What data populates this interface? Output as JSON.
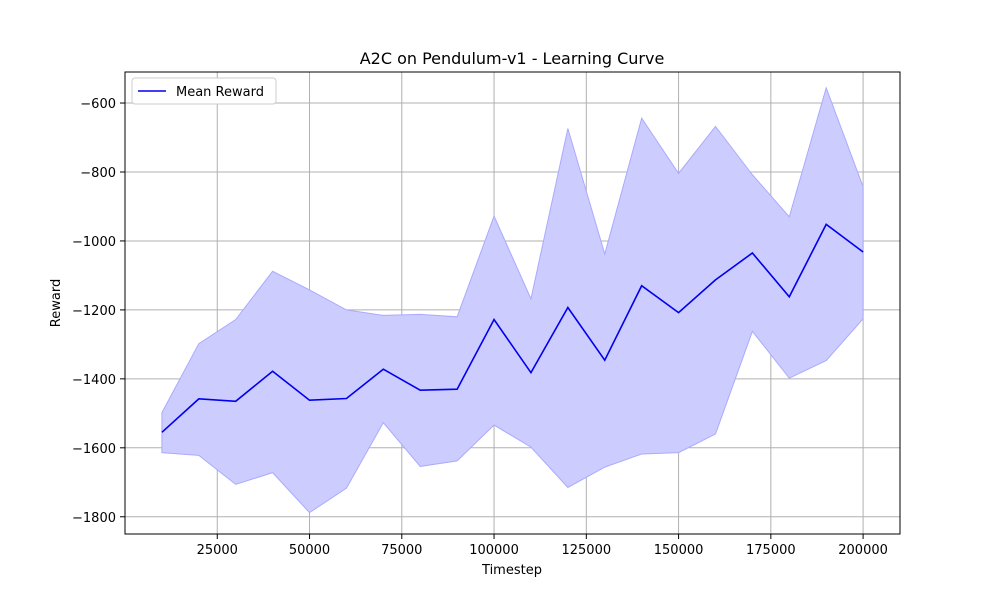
{
  "chart_data": {
    "type": "line",
    "title": "A2C on Pendulum-v1 - Learning Curve",
    "xlabel": "Timestep",
    "ylabel": "Reward",
    "xlim": [
      0,
      210000
    ],
    "ylim": [
      -1850,
      -510
    ],
    "xticks": [
      25000,
      50000,
      75000,
      100000,
      125000,
      150000,
      175000,
      200000
    ],
    "yticks": [
      -1800,
      -1600,
      -1400,
      -1200,
      -1000,
      -800,
      -600
    ],
    "grid": true,
    "legend": "top-left",
    "x": [
      10000,
      20000,
      30000,
      40000,
      50000,
      60000,
      70000,
      80000,
      90000,
      100000,
      110000,
      120000,
      130000,
      140000,
      150000,
      160000,
      170000,
      180000,
      190000,
      200000
    ],
    "series": [
      {
        "name": "Mean Reward",
        "color": "#0000ee",
        "values": [
          -1555,
          -1458,
          -1465,
          -1378,
          -1462,
          -1457,
          -1372,
          -1433,
          -1430,
          -1228,
          -1382,
          -1193,
          -1346,
          -1130,
          -1208,
          -1113,
          -1035,
          -1162,
          -952,
          -1032
        ]
      }
    ],
    "band": {
      "color": "#ccccff",
      "edge_color": "#aaaaff",
      "upper": [
        -1498,
        -1298,
        -1228,
        -1088,
        -1142,
        -1200,
        -1216,
        -1213,
        -1220,
        -928,
        -1168,
        -674,
        -1038,
        -644,
        -804,
        -668,
        -808,
        -930,
        -556,
        -843
      ],
      "lower": [
        -1614,
        -1622,
        -1706,
        -1672,
        -1788,
        -1717,
        -1527,
        -1654,
        -1638,
        -1534,
        -1598,
        -1715,
        -1656,
        -1618,
        -1614,
        -1560,
        -1262,
        -1398,
        -1347,
        -1226
      ]
    }
  }
}
